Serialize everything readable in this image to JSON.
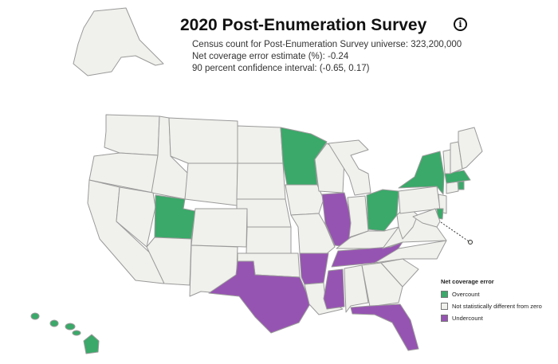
{
  "title": "2020 Post-Enumeration Survey",
  "stats": {
    "census_count": "Census count for Post-Enumeration Survey universe: 323,200,000",
    "net_coverage": "Net coverage error estimate (%): -0.24",
    "confidence": "90 percent confidence interval: (-0.65, 0.17)"
  },
  "legend": {
    "title": "Net coverage error",
    "items": [
      {
        "key": "over",
        "label": "Overcount",
        "color": "#3aa969"
      },
      {
        "key": "none",
        "label": "Not statistically different from zero",
        "color": "#f0f0ec"
      },
      {
        "key": "under",
        "label": "Undercount",
        "color": "#9654b2"
      }
    ]
  },
  "overcount_states": [
    "Utah",
    "Minnesota",
    "Ohio",
    "New York",
    "Massachusetts",
    "Rhode Island",
    "Delaware",
    "Hawaii"
  ],
  "undercount_states": [
    "Texas",
    "Arkansas",
    "Illinois",
    "Mississippi",
    "Tennessee",
    "Florida"
  ]
}
